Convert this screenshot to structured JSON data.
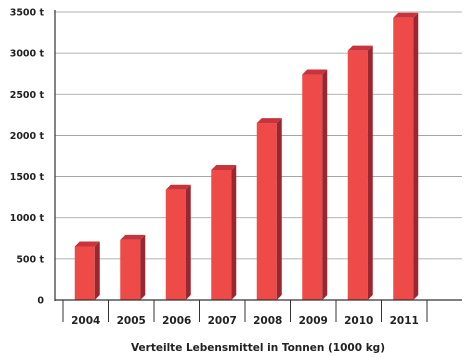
{
  "chart_data": {
    "type": "bar",
    "title": "",
    "xlabel": "Verteilte Lebensmittel in Tonnen (1000 kg)",
    "ylabel": "",
    "categories": [
      "2004",
      "2005",
      "2006",
      "2007",
      "2008",
      "2009",
      "2010",
      "2011"
    ],
    "values": [
      650,
      730,
      1340,
      1580,
      2150,
      2740,
      3030,
      3430
    ],
    "ylim": [
      0,
      3500
    ],
    "y_ticks": [
      {
        "value": 0,
        "label": "0"
      },
      {
        "value": 500,
        "label": "500 t"
      },
      {
        "value": 1000,
        "label": "1000 t"
      },
      {
        "value": 1500,
        "label": "1500 t"
      },
      {
        "value": 2000,
        "label": "2000 t"
      },
      {
        "value": 2500,
        "label": "2500 t"
      },
      {
        "value": 3000,
        "label": "3000 t"
      },
      {
        "value": 3500,
        "label": "3500 t"
      }
    ],
    "grid": true,
    "legend": "none",
    "bar_style": "3d",
    "colors": {
      "bar_front": "#ee4a48",
      "bar_side": "#9c2630",
      "bar_top": "#c9333b",
      "gridline": "#999999",
      "axis": "#333333",
      "text": "#222222"
    }
  }
}
